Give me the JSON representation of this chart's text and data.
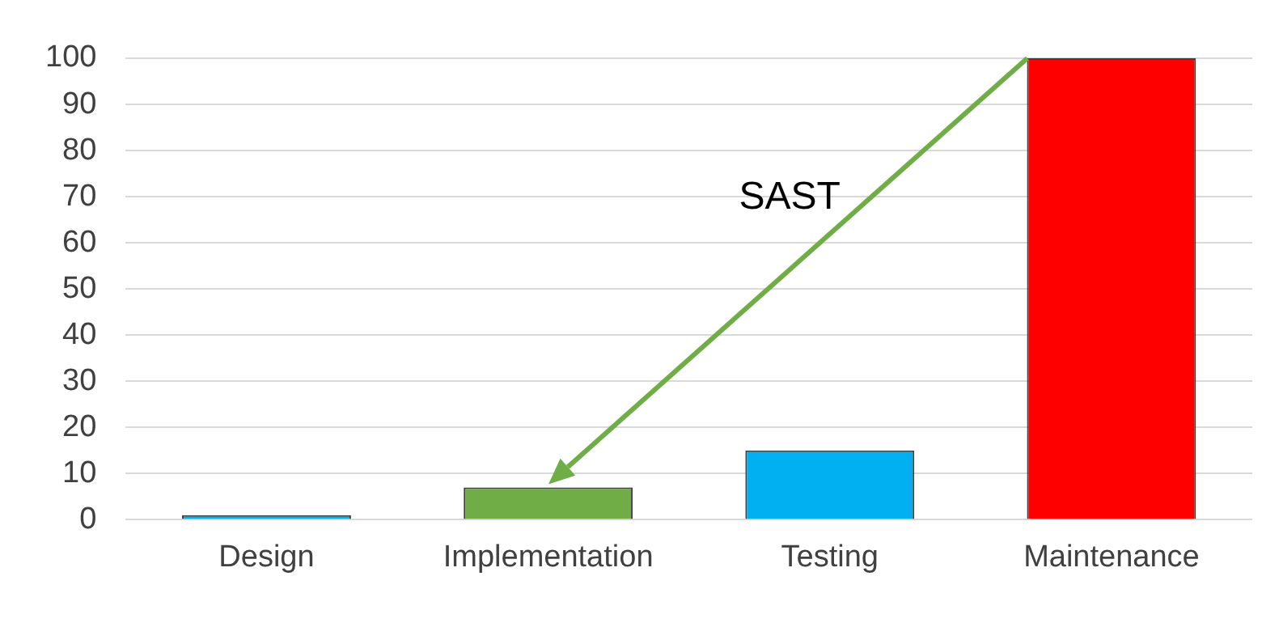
{
  "chart_data": {
    "type": "bar",
    "categories": [
      "Design",
      "Implementation",
      "Testing",
      "Maintenance"
    ],
    "values": [
      1,
      7,
      15,
      100
    ],
    "colors": [
      "#00b0f0",
      "#70ad47",
      "#00b0f0",
      "#ff0000"
    ],
    "ylim": [
      0,
      100
    ],
    "yticks": [
      0,
      10,
      20,
      30,
      40,
      50,
      60,
      70,
      80,
      90,
      100
    ],
    "grid": "y",
    "legend": false,
    "annotations": [
      "SAST"
    ]
  }
}
